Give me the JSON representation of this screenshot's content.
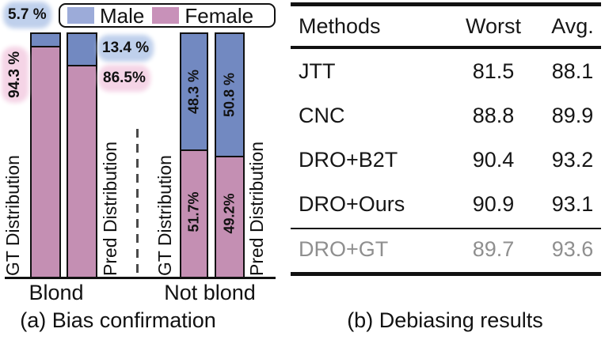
{
  "colors": {
    "bar-male": "#7289c1",
    "bar-female": "#c48fb3",
    "legend-male": "#9cabd9",
    "legend-female": "#c891b9",
    "glow-blue": "#bfd0ec",
    "glow-pink": "#f5d4e6",
    "muted-text": "#8f8f8f",
    "ink": "#141414"
  },
  "chart_data": {
    "type": "bar",
    "stacked": true,
    "unit": "%",
    "caption": "(a) Bias confirmation",
    "ylim": [
      0,
      100
    ],
    "legend_position": "top",
    "legend": [
      {
        "label": "Male"
      },
      {
        "label": "Female"
      }
    ],
    "groups": [
      {
        "label": "Blond"
      },
      {
        "label": "Not blond"
      }
    ],
    "bars": [
      {
        "group": "Blond",
        "axis_label": "GT Distribution",
        "male_pct": 5.7,
        "female_pct": 94.3,
        "male_label": "5.7 %",
        "female_label": "94.3 %"
      },
      {
        "group": "Blond",
        "axis_label": "Pred Distribution",
        "male_pct": 13.4,
        "female_pct": 86.5,
        "male_label": "13.4 %",
        "female_label": "86.5%"
      },
      {
        "group": "Not blond",
        "axis_label": "GT Distribution",
        "male_pct": 48.3,
        "female_pct": 51.7,
        "male_label": "48.3 %",
        "female_label": "51.7%"
      },
      {
        "group": "Not blond",
        "axis_label": "Pred Distribution",
        "male_pct": 50.8,
        "female_pct": 49.2,
        "male_label": "50.8 %",
        "female_label": "49.2%"
      }
    ]
  },
  "table": {
    "caption": "(b) Debiasing results",
    "columns": [
      "Methods",
      "Worst",
      "Avg."
    ],
    "rows": [
      {
        "method": "JTT",
        "worst": "81.5",
        "avg": "88.1"
      },
      {
        "method": "CNC",
        "worst": "88.8",
        "avg": "89.9"
      },
      {
        "method": "DRO+B2T",
        "worst": "90.4",
        "avg": "93.2"
      },
      {
        "method": "DRO+Ours",
        "worst": "90.9",
        "avg": "93.1"
      },
      {
        "method": "DRO+GT",
        "worst": "89.7",
        "avg": "93.6"
      }
    ]
  }
}
